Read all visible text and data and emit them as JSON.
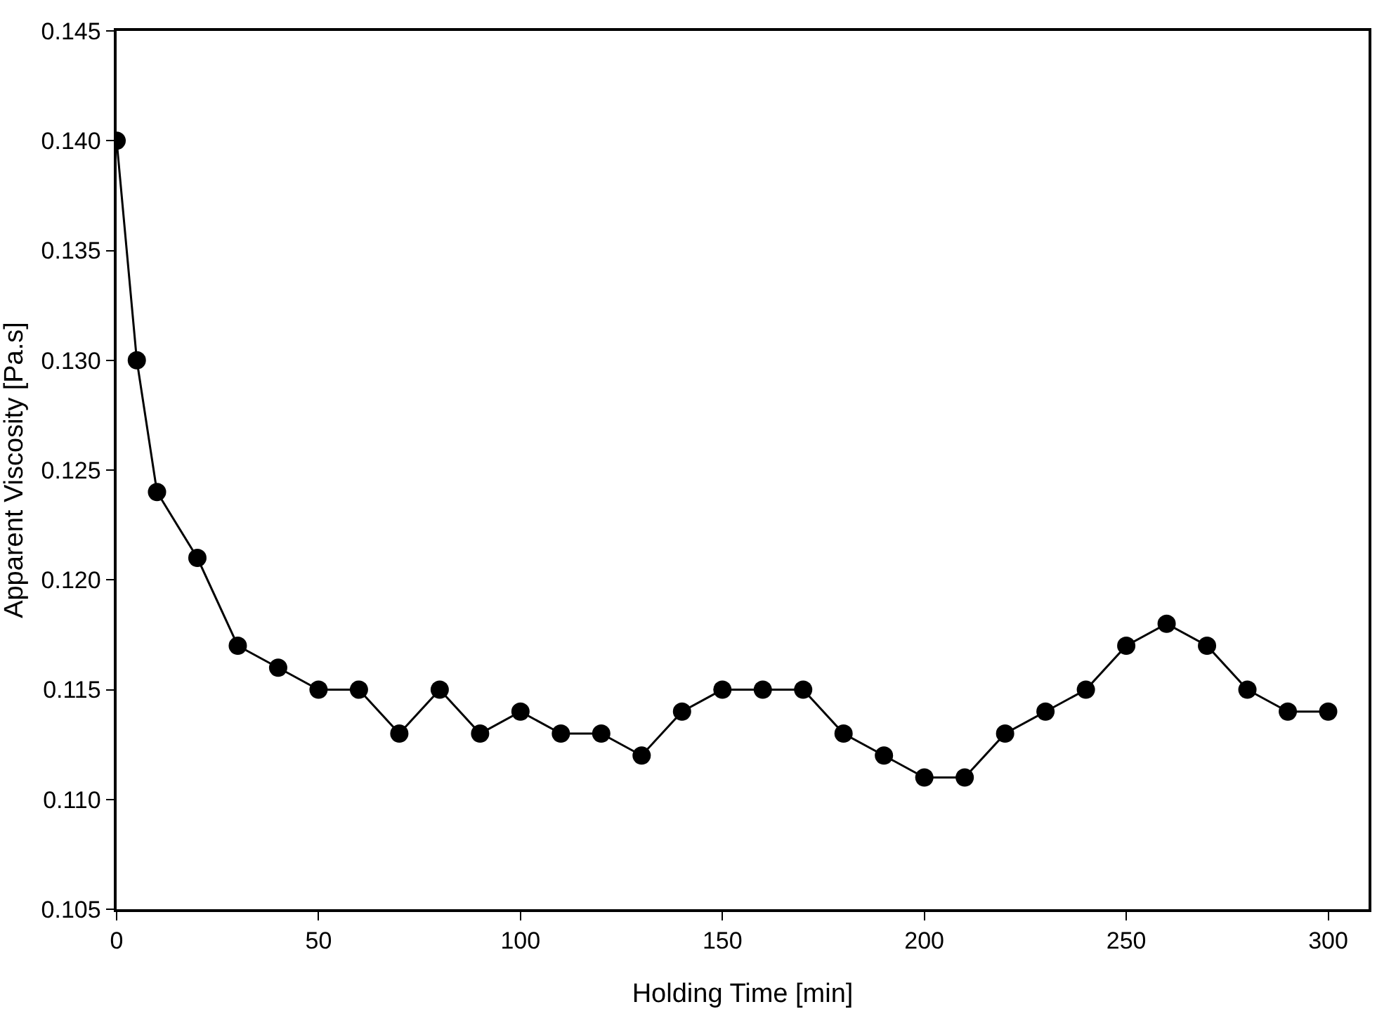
{
  "chart_data": {
    "type": "line",
    "xlabel": "Holding Time [min]",
    "ylabel": "Apparent Viscosity [Pa.s]",
    "x": [
      0,
      5,
      10,
      20,
      30,
      40,
      50,
      60,
      70,
      80,
      90,
      100,
      110,
      120,
      130,
      140,
      150,
      160,
      170,
      180,
      190,
      200,
      210,
      220,
      230,
      240,
      250,
      260,
      270,
      280,
      290,
      300
    ],
    "series": [
      {
        "color": "#000000",
        "values": [
          0.14,
          0.13,
          0.124,
          0.121,
          0.117,
          0.116,
          0.115,
          0.115,
          0.113,
          0.115,
          0.113,
          0.114,
          0.113,
          0.113,
          0.112,
          0.114,
          0.115,
          0.115,
          0.115,
          0.113,
          0.112,
          0.111,
          0.111,
          0.113,
          0.114,
          0.115,
          0.117,
          0.118,
          0.117,
          0.115,
          0.114,
          0.114
        ]
      }
    ],
    "xlim": [
      0,
      310
    ],
    "xticks": [
      0,
      50,
      100,
      150,
      200,
      250,
      300
    ],
    "ylim": [
      0.105,
      0.145
    ],
    "yticks": [
      {
        "value": 0.105,
        "label": "0.105"
      },
      {
        "value": 0.11,
        "label": "0.110"
      },
      {
        "value": 0.115,
        "label": "0.115"
      },
      {
        "value": 0.12,
        "label": "0.120"
      },
      {
        "value": 0.125,
        "label": "0.125"
      },
      {
        "value": 0.13,
        "label": "0.130"
      },
      {
        "value": 0.135,
        "label": "0.135"
      },
      {
        "value": 0.14,
        "label": "0.140"
      },
      {
        "value": 0.145,
        "label": "0.145"
      }
    ],
    "marker": "circle",
    "line_style": "solid"
  }
}
